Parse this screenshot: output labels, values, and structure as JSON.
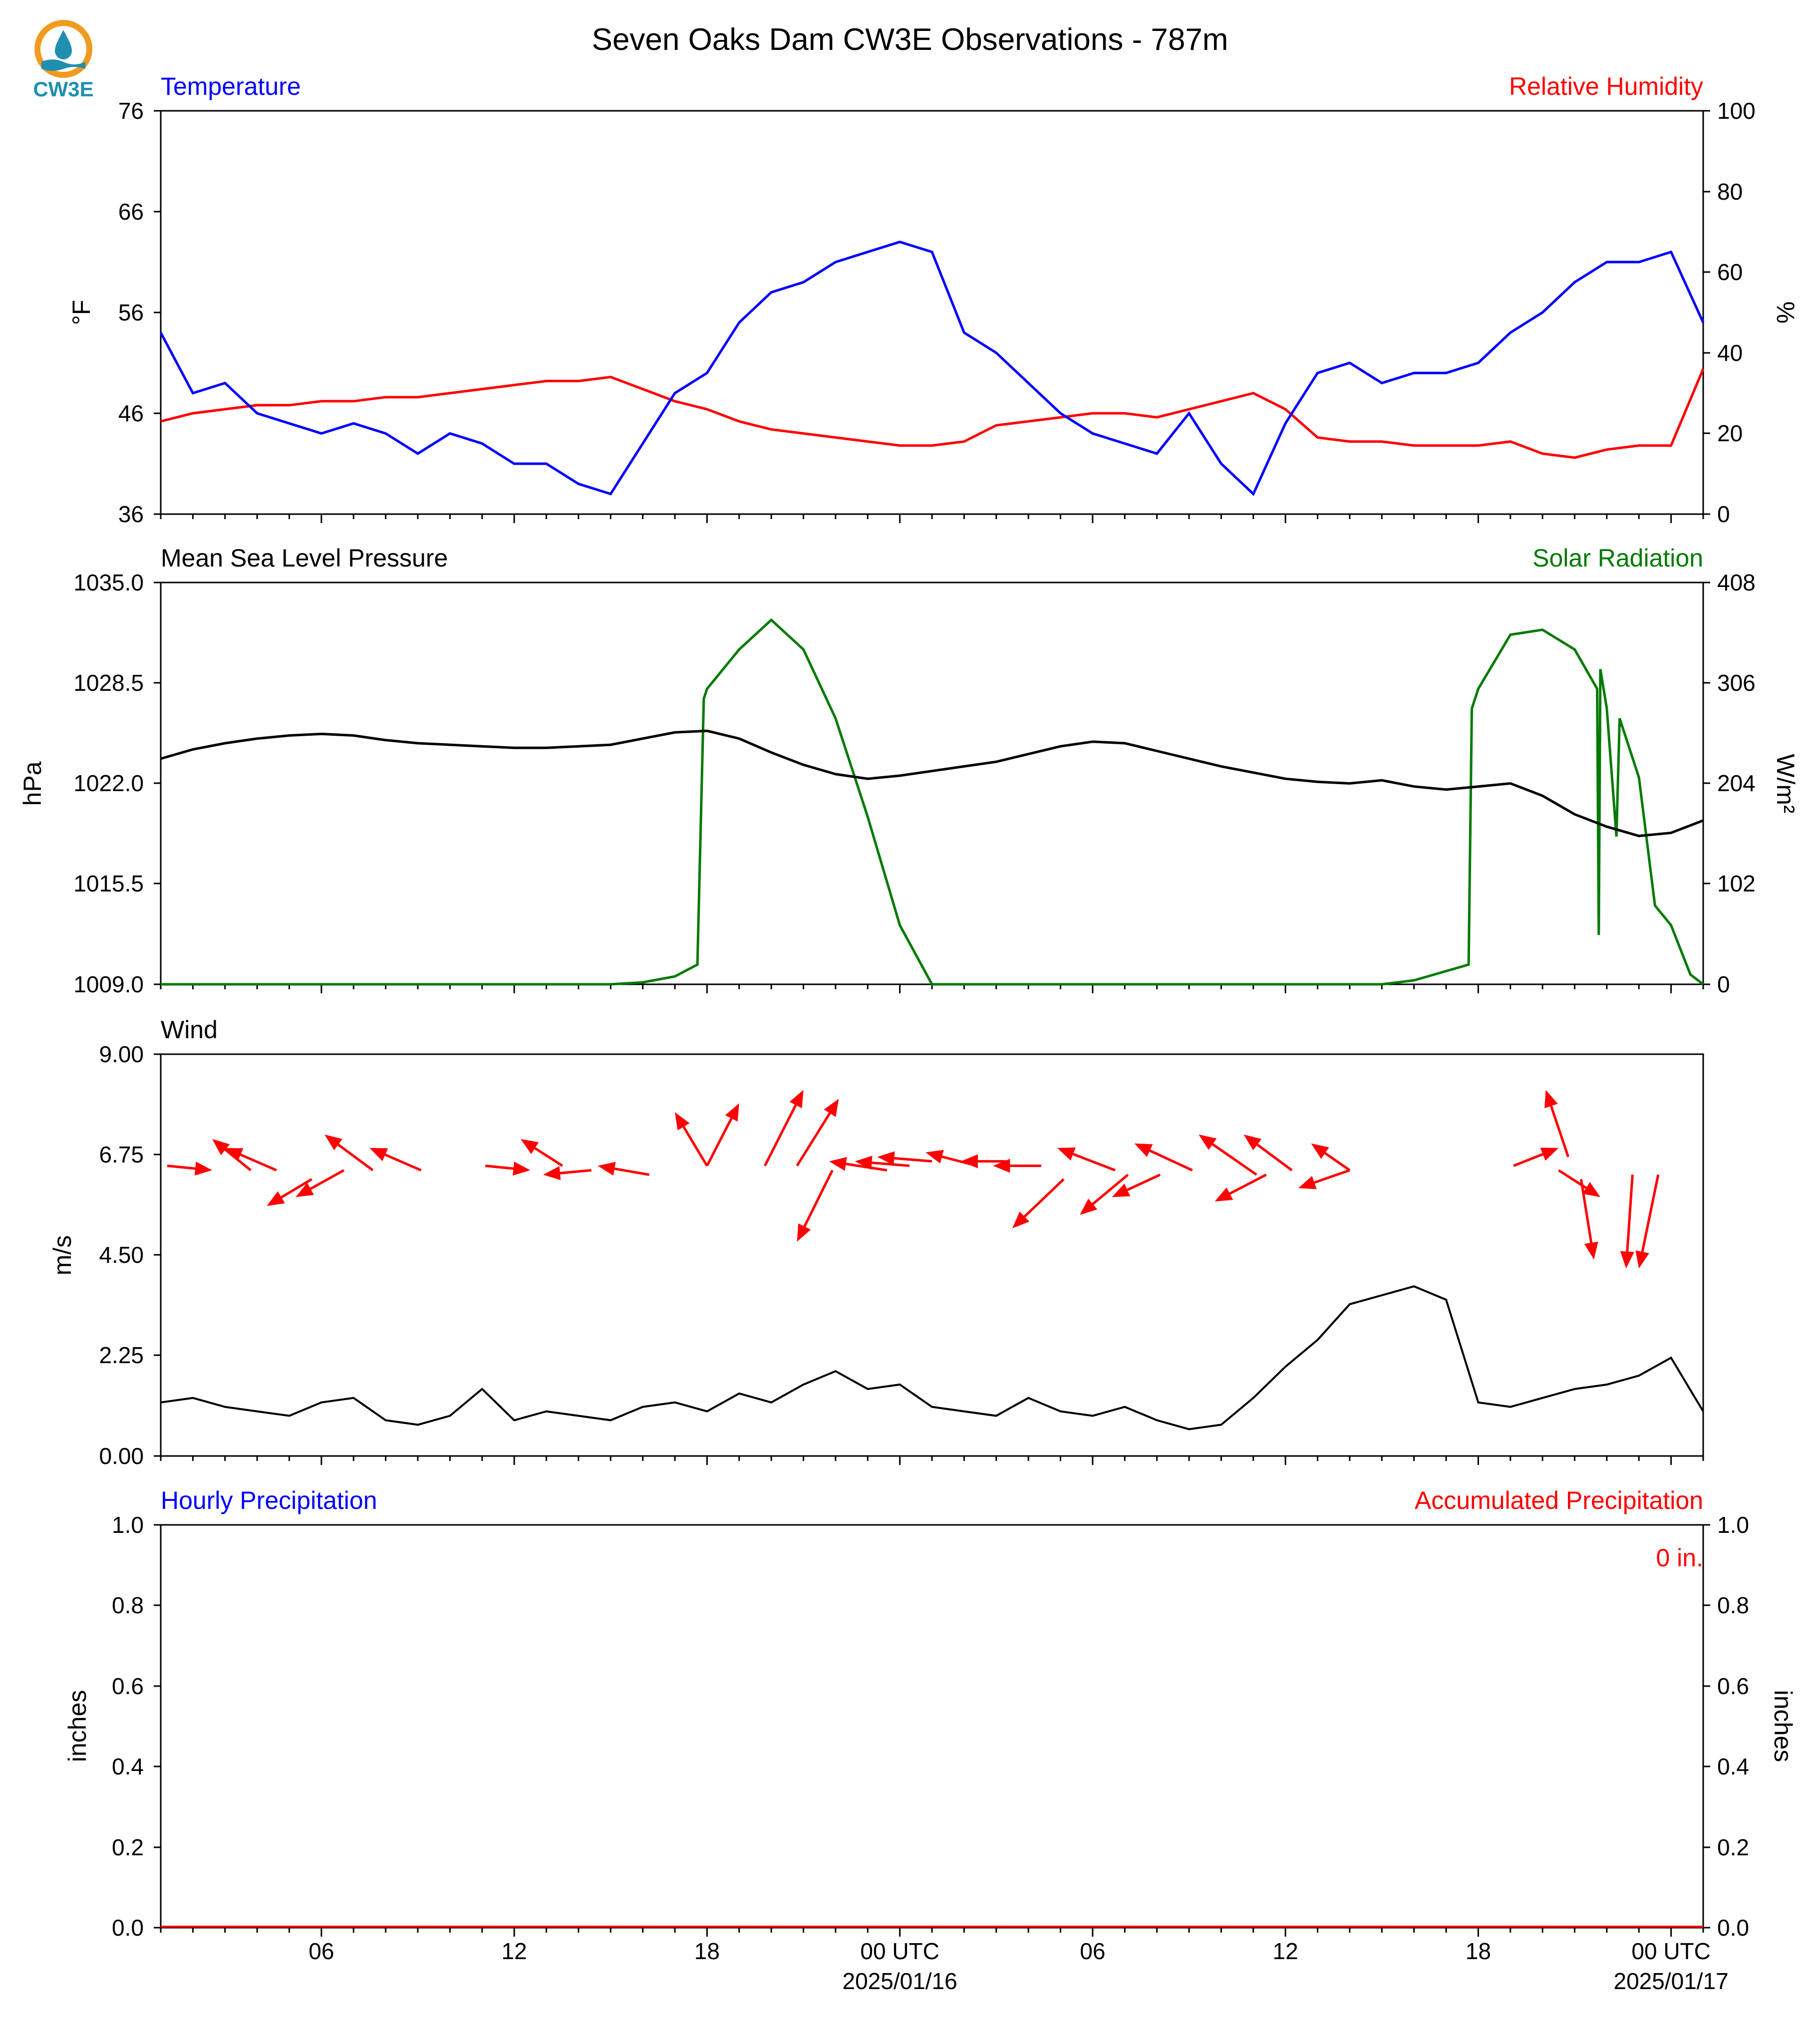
{
  "title": "Seven Oaks Dam CW3E Observations - 787m",
  "logo": {
    "text": "CW3E",
    "color": "#1f8fb0",
    "accent": "#f29a1e"
  },
  "colors": {
    "temperature": "#0000ff",
    "humidity": "#ff0000",
    "pressure": "#000000",
    "solar": "#007a00",
    "wind": "#000000",
    "arrows": "#ff0000",
    "hourly_precip": "#0000ff",
    "accum_precip": "#ff0000"
  },
  "x_axis": {
    "ticks": [
      {
        "hour": 6,
        "label": "06"
      },
      {
        "hour": 12,
        "label": "12"
      },
      {
        "hour": 18,
        "label": "18"
      },
      {
        "hour": 24,
        "label": "00 UTC",
        "date": "2025/01/16"
      },
      {
        "hour": 30,
        "label": "06"
      },
      {
        "hour": 36,
        "label": "12"
      },
      {
        "hour": 42,
        "label": "18"
      },
      {
        "hour": 48,
        "label": "00 UTC",
        "date": "2025/01/17"
      }
    ],
    "range_hours": [
      1,
      49
    ]
  },
  "panels": {
    "temp_rh": {
      "left_title": "Temperature",
      "right_title": "Relative Humidity",
      "ylabel_left": "°F",
      "ylabel_right": "%",
      "left_ticks": [
        "76",
        "66",
        "56",
        "46",
        "36"
      ],
      "right_ticks": [
        "100",
        "80",
        "60",
        "40",
        "20",
        "0"
      ]
    },
    "pressure_solar": {
      "left_title": "Mean Sea Level Pressure",
      "right_title": "Solar Radiation",
      "ylabel_left": "hPa",
      "ylabel_right": "W/m²",
      "left_ticks": [
        "1035.0",
        "1028.5",
        "1022.0",
        "1015.5",
        "1009.0"
      ],
      "right_ticks": [
        "408",
        "306",
        "204",
        "102",
        "0"
      ]
    },
    "wind": {
      "left_title": "Wind",
      "ylabel_left": "m/s",
      "left_ticks": [
        "9.00",
        "6.75",
        "4.50",
        "2.25",
        "0.00"
      ]
    },
    "precip": {
      "left_title": "Hourly Precipitation",
      "right_title": "Accumulated Precipitation",
      "ylabel_left": "inches",
      "ylabel_right": "inches",
      "left_ticks": [
        "1.0",
        "0.8",
        "0.6",
        "0.4",
        "0.2",
        "0.0"
      ],
      "right_ticks": [
        "1.0",
        "0.8",
        "0.6",
        "0.4",
        "0.2",
        "0.0"
      ],
      "total_label": "0 in."
    }
  },
  "chart_data": [
    {
      "type": "line",
      "title": "Temperature / Relative Humidity",
      "x_units": "hours since 2025/01/15 00 UTC",
      "ylim_left": [
        36,
        76
      ],
      "ylim_right": [
        0,
        100
      ],
      "series": [
        {
          "name": "Temperature",
          "axis": "left",
          "x": [
            1,
            2,
            3,
            4,
            5,
            6,
            7,
            8,
            9,
            10,
            11,
            12,
            13,
            14,
            15,
            16,
            17,
            18,
            19,
            20,
            21,
            22,
            23,
            24,
            25,
            26,
            27,
            28,
            29,
            30,
            31,
            32,
            33,
            34,
            35,
            36,
            37,
            38,
            39,
            40,
            41,
            42,
            43,
            44,
            45,
            46,
            47,
            48,
            49
          ],
          "y": [
            54,
            48,
            49,
            46,
            45,
            44,
            45,
            44,
            42,
            44,
            43,
            41,
            41,
            39,
            38,
            43,
            48,
            50,
            55,
            58,
            59,
            61,
            62,
            63,
            62,
            54,
            52,
            49,
            46,
            44,
            43,
            42,
            46,
            41,
            38,
            45,
            50,
            51,
            49,
            50,
            50,
            51,
            54,
            56,
            59,
            61,
            61,
            62,
            55
          ]
        },
        {
          "name": "Relative Humidity",
          "axis": "right",
          "x": [
            1,
            2,
            3,
            4,
            5,
            6,
            7,
            8,
            9,
            10,
            11,
            12,
            13,
            14,
            15,
            16,
            17,
            18,
            19,
            20,
            21,
            22,
            23,
            24,
            25,
            26,
            27,
            28,
            29,
            30,
            31,
            32,
            33,
            34,
            35,
            36,
            37,
            38,
            39,
            40,
            41,
            42,
            43,
            44,
            45,
            46,
            47,
            48,
            49
          ],
          "y": [
            23,
            25,
            26,
            27,
            27,
            28,
            28,
            29,
            29,
            30,
            31,
            32,
            33,
            33,
            34,
            31,
            28,
            26,
            23,
            21,
            20,
            19,
            18,
            17,
            17,
            18,
            22,
            23,
            24,
            25,
            25,
            24,
            26,
            28,
            30,
            26,
            19,
            18,
            18,
            17,
            17,
            17,
            18,
            15,
            14,
            16,
            17,
            17,
            36
          ]
        }
      ]
    },
    {
      "type": "line",
      "title": "Mean Sea Level Pressure / Solar Radiation",
      "x_units": "hours since 2025/01/15 00 UTC",
      "ylim_left": [
        1009,
        1035
      ],
      "ylim_right": [
        0,
        408
      ],
      "series": [
        {
          "name": "Mean Sea Level Pressure",
          "axis": "left",
          "x": [
            1,
            2,
            3,
            4,
            5,
            6,
            7,
            8,
            9,
            10,
            11,
            12,
            13,
            14,
            15,
            16,
            17,
            18,
            19,
            20,
            21,
            22,
            23,
            24,
            25,
            26,
            27,
            28,
            29,
            30,
            31,
            32,
            33,
            34,
            35,
            36,
            37,
            38,
            39,
            40,
            41,
            42,
            43,
            44,
            45,
            46,
            47,
            48,
            49
          ],
          "y": [
            1023.6,
            1024.2,
            1024.6,
            1024.9,
            1025.1,
            1025.2,
            1025.1,
            1024.8,
            1024.6,
            1024.5,
            1024.4,
            1024.3,
            1024.3,
            1024.4,
            1024.5,
            1024.9,
            1025.3,
            1025.4,
            1024.9,
            1024.0,
            1023.2,
            1022.6,
            1022.3,
            1022.5,
            1022.8,
            1023.1,
            1023.4,
            1023.9,
            1024.4,
            1024.7,
            1024.6,
            1024.1,
            1023.6,
            1023.1,
            1022.7,
            1022.3,
            1022.1,
            1022.0,
            1022.2,
            1021.8,
            1021.6,
            1021.8,
            1022.0,
            1021.2,
            1020.0,
            1019.2,
            1018.6,
            1018.8,
            1019.6
          ]
        },
        {
          "name": "Solar Radiation",
          "axis": "right",
          "x": [
            1,
            15,
            16,
            17,
            17.7,
            17.9,
            18,
            19,
            20,
            21,
            22,
            23,
            24,
            25,
            25.5,
            25.6,
            39,
            40,
            41.7,
            41.8,
            42,
            43,
            44,
            45,
            45.7,
            45.75,
            45.8,
            46,
            46.3,
            46.4,
            47,
            47.5,
            48,
            48.6,
            49
          ],
          "y": [
            0,
            0,
            2,
            8,
            20,
            290,
            300,
            340,
            370,
            340,
            270,
            170,
            60,
            0,
            0,
            0,
            0,
            4,
            20,
            280,
            300,
            355,
            360,
            340,
            300,
            50,
            320,
            280,
            150,
            270,
            210,
            80,
            60,
            10,
            0
          ]
        }
      ]
    },
    {
      "type": "line",
      "title": "Wind",
      "x_units": "hours since 2025/01/15 00 UTC",
      "ylim": [
        0,
        9
      ],
      "series": [
        {
          "name": "Wind",
          "x": [
            1,
            2,
            3,
            4,
            5,
            6,
            7,
            8,
            9,
            10,
            11,
            12,
            13,
            14,
            15,
            16,
            17,
            18,
            19,
            20,
            21,
            22,
            23,
            24,
            25,
            26,
            27,
            28,
            29,
            30,
            31,
            32,
            33,
            34,
            35,
            36,
            37,
            38,
            39,
            40,
            41,
            42,
            43,
            44,
            45,
            46,
            47,
            48,
            49
          ],
          "y": [
            1.2,
            1.3,
            1.1,
            1.0,
            0.9,
            1.2,
            1.3,
            0.8,
            0.7,
            0.9,
            1.5,
            0.8,
            1.0,
            0.9,
            0.8,
            1.1,
            1.2,
            1.0,
            1.4,
            1.2,
            1.6,
            1.9,
            1.5,
            1.6,
            1.1,
            1.0,
            0.9,
            1.3,
            1.0,
            0.9,
            1.1,
            0.8,
            0.6,
            0.7,
            1.3,
            2.0,
            2.6,
            3.4,
            3.6,
            3.8,
            3.5,
            1.2,
            1.1,
            1.3,
            1.5,
            1.6,
            1.8,
            2.2,
            1.0
          ]
        }
      ]
    },
    {
      "type": "bar",
      "title": "Hourly Precipitation / Accumulated Precipitation",
      "x_units": "hours since 2025/01/15 00 UTC",
      "ylim_left": [
        0,
        1
      ],
      "ylim_right": [
        0,
        1
      ],
      "series": [
        {
          "name": "Hourly Precipitation",
          "values": []
        },
        {
          "name": "Accumulated Precipitation",
          "values": [
            0
          ]
        }
      ]
    }
  ]
}
